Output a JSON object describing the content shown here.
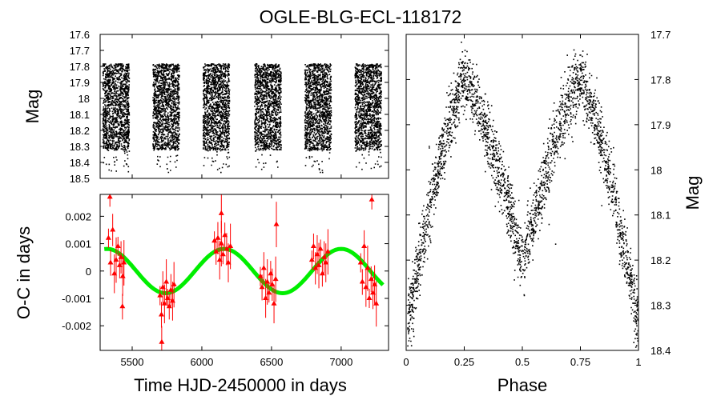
{
  "title": "OGLE-BLG-ECL-118172",
  "colors": {
    "points": "#000000",
    "oc_points": "#ff0000",
    "fit": "#00ee00"
  },
  "chart_data": [
    {
      "id": "lightcurve",
      "type": "scatter",
      "ylabel": "Mag",
      "ylim": [
        17.6,
        18.5
      ],
      "y_inverted": true,
      "yticks": [
        "17.6",
        "17.7",
        "17.8",
        "17.9",
        "18",
        "18.1",
        "18.2",
        "18.3",
        "18.4",
        "18.5"
      ],
      "xlim": [
        5270,
        7340
      ],
      "season_centers": [
        5380,
        5740,
        6100,
        6470,
        6830,
        7190
      ],
      "season_halfwidth": 95,
      "mag_range_per_season": [
        17.78,
        18.32
      ],
      "outlier_max_mag": 18.46
    },
    {
      "id": "oc",
      "type": "scatter",
      "xlabel": "Time HJD-2450000 in days",
      "ylabel": "O-C in days",
      "xlim": [
        5270,
        7340
      ],
      "ylim": [
        -0.0029,
        0.0028
      ],
      "xticks": [
        "5500",
        "6000",
        "6500",
        "7000"
      ],
      "xtick_values": [
        5500,
        6000,
        6500,
        7000
      ],
      "yticks": [
        "0.002",
        "0.001",
        "0",
        "-0.001",
        "-0.002"
      ],
      "ytick_values": [
        0.002,
        0.001,
        0,
        -0.001,
        -0.002
      ],
      "fit": {
        "amplitude": 0.00081,
        "period_days": 840,
        "phase_peak_day": 6160,
        "offset": 0.0
      },
      "points": [
        [
          5330,
          0.0012
        ],
        [
          5345,
          0.0003
        ],
        [
          5360,
          0.0015
        ],
        [
          5372,
          -0.0001
        ],
        [
          5385,
          0.0004
        ],
        [
          5398,
          0.0009
        ],
        [
          5410,
          0.0002
        ],
        [
          5420,
          0.0005
        ],
        [
          5432,
          -0.0002
        ],
        [
          5441,
          0.0003
        ],
        [
          5700,
          -0.0009
        ],
        [
          5710,
          -0.0016
        ],
        [
          5720,
          -0.0006
        ],
        [
          5732,
          -0.0012
        ],
        [
          5745,
          -0.0004
        ],
        [
          5755,
          -0.001
        ],
        [
          5766,
          -0.0013
        ],
        [
          5778,
          -0.0007
        ],
        [
          5790,
          -0.0011
        ],
        [
          5800,
          -0.0005
        ],
        [
          6090,
          0.0011
        ],
        [
          6102,
          0.0007
        ],
        [
          6115,
          0.0012
        ],
        [
          6128,
          0.0004
        ],
        [
          6140,
          0.001
        ],
        [
          6152,
          0.0006
        ],
        [
          6165,
          0.0013
        ],
        [
          6178,
          0.0008
        ],
        [
          6190,
          0.0003
        ],
        [
          6205,
          0.0009
        ],
        [
          6420,
          -0.0002
        ],
        [
          6432,
          -0.0006
        ],
        [
          6445,
          0.0001
        ],
        [
          6458,
          -0.001
        ],
        [
          6470,
          -0.0004
        ],
        [
          6482,
          -0.0008
        ],
        [
          6494,
          -0.0001
        ],
        [
          6505,
          -0.0005
        ],
        [
          6518,
          -0.0012
        ],
        [
          6530,
          -0.0003
        ],
        [
          6790,
          0.0004
        ],
        [
          6802,
          0.0009
        ],
        [
          6815,
          0.0001
        ],
        [
          6828,
          0.0006
        ],
        [
          6840,
          0.0002
        ],
        [
          6852,
          0.0008
        ],
        [
          6865,
          -0.0001
        ],
        [
          6878,
          0.0005
        ],
        [
          6890,
          0.0003
        ],
        [
          6905,
          0.0007
        ],
        [
          7140,
          0.0003
        ],
        [
          7152,
          -0.0004
        ],
        [
          7165,
          0.0009
        ],
        [
          7178,
          -0.0006
        ],
        [
          7190,
          0.0001
        ],
        [
          7202,
          -0.001
        ],
        [
          7215,
          -0.0003
        ],
        [
          7228,
          -0.0008
        ],
        [
          7240,
          -0.0005
        ],
        [
          7252,
          -0.0012
        ],
        [
          5340,
          0.0027
        ],
        [
          5430,
          -0.0013
        ],
        [
          5712,
          -0.0026
        ],
        [
          6140,
          0.0021
        ],
        [
          6535,
          0.0017
        ],
        [
          7220,
          0.0026
        ]
      ]
    },
    {
      "id": "phased",
      "type": "scatter",
      "xlabel": "Phase",
      "ylabel": "Mag",
      "xlim": [
        0,
        1
      ],
      "ylim": [
        17.7,
        18.4
      ],
      "y_inverted": true,
      "xticks": [
        "0",
        "0.25",
        "0.5",
        "0.75",
        "1"
      ],
      "xtick_values": [
        0,
        0.25,
        0.5,
        0.75,
        1
      ],
      "yticks": [
        "17.7",
        "17.8",
        "17.9",
        "18",
        "18.1",
        "18.2",
        "18.3",
        "18.4"
      ],
      "ytick_values": [
        17.7,
        17.8,
        17.9,
        18.0,
        18.1,
        18.2,
        18.3,
        18.4
      ],
      "max_mag": 17.8,
      "primary_min_mag": 18.35,
      "secondary_min_mag": 18.2
    }
  ]
}
